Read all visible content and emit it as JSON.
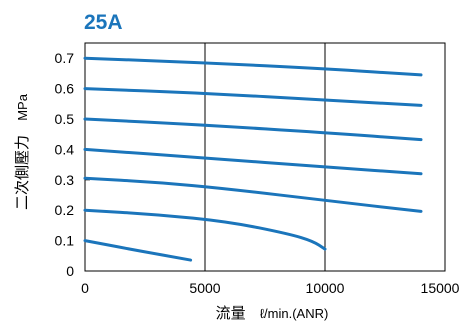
{
  "colors": {
    "series": "#1b75bb",
    "title": "#1b75bb",
    "axis": "#000000",
    "background": "#ffffff"
  },
  "chart_data": {
    "type": "line",
    "title": "25A",
    "xlabel": "流量",
    "xunit": "ℓ/min.(ANR)",
    "ylabel": "二次側壓力",
    "yunit": "MPa",
    "xlim": [
      0,
      15000
    ],
    "ylim": [
      0,
      0.75
    ],
    "xticks": [
      0,
      5000,
      10000,
      15000
    ],
    "yticks": [
      0,
      0.1,
      0.2,
      0.3,
      0.4,
      0.5,
      0.6,
      0.7
    ],
    "grid": {
      "x": true,
      "y": false
    },
    "legend": "none",
    "series": [
      {
        "points": [
          [
            0,
            0.7
          ],
          [
            5000,
            0.685
          ],
          [
            10000,
            0.665
          ],
          [
            14000,
            0.645
          ]
        ]
      },
      {
        "points": [
          [
            0,
            0.6
          ],
          [
            5000,
            0.585
          ],
          [
            10000,
            0.562
          ],
          [
            14000,
            0.545
          ]
        ]
      },
      {
        "points": [
          [
            0,
            0.5
          ],
          [
            5000,
            0.48
          ],
          [
            10000,
            0.455
          ],
          [
            14000,
            0.432
          ]
        ]
      },
      {
        "points": [
          [
            0,
            0.4
          ],
          [
            5000,
            0.372
          ],
          [
            10000,
            0.342
          ],
          [
            14000,
            0.32
          ]
        ]
      },
      {
        "points": [
          [
            0,
            0.305
          ],
          [
            3000,
            0.292
          ],
          [
            6000,
            0.27
          ],
          [
            10000,
            0.232
          ],
          [
            14000,
            0.196
          ]
        ]
      },
      {
        "points": [
          [
            0,
            0.2
          ],
          [
            3000,
            0.186
          ],
          [
            6000,
            0.162
          ],
          [
            8500,
            0.122
          ],
          [
            9500,
            0.098
          ],
          [
            10000,
            0.072
          ]
        ]
      },
      {
        "points": [
          [
            0,
            0.1
          ],
          [
            2000,
            0.07
          ],
          [
            4400,
            0.036
          ]
        ]
      }
    ]
  }
}
